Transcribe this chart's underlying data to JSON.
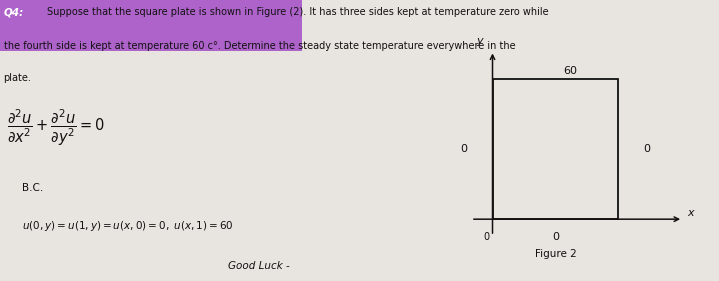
{
  "background_color": "#e8e4e0",
  "text_color": "#111111",
  "highlight_color": "#a855c8",
  "q4_label": "Q4:",
  "main_text_line1": "Suppose that the square plate is shown in Figure (2). It has three sides kept at temperature zero while",
  "main_text_line2": "the fourth side is kept at temperature 60 c°. Determine the steady state temperature everywhere in the",
  "main_text_line3": "plate.",
  "bc_label": "B.C.",
  "bc_eq": "u(0, y) = u(1, y) = u(x, 0) = 0, u(x, 1) = 60",
  "good_luck": "Good Luck -",
  "fig_caption": "Figure 2",
  "y_axis_label": "y",
  "x_axis_label": "x",
  "temp_top": "60",
  "temp_left": "0",
  "temp_right": "0",
  "temp_bottom": "0",
  "origin_label": "0",
  "fig_width": 7.19,
  "fig_height": 2.81,
  "dpi": 100
}
